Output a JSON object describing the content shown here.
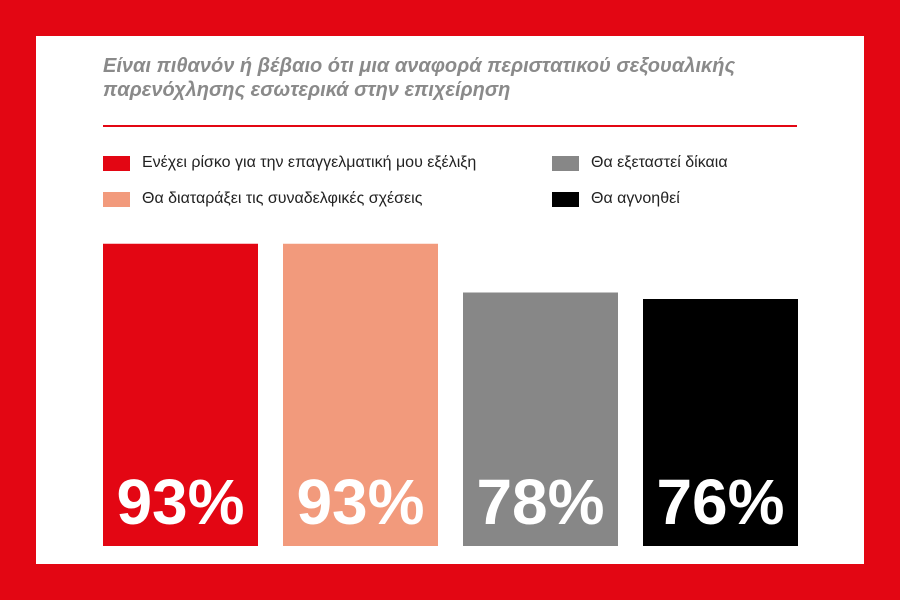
{
  "chart_data": {
    "type": "bar",
    "title": [
      "Είναι πιθανόν ή βέβαιο ότι μια αναφορά περιστατικού σεξουαλικής",
      "παρενόχλησης εσωτερικά στην επιχείρηση"
    ],
    "xlabel": "",
    "ylabel": "",
    "ylim": [
      0,
      100
    ],
    "grid": false,
    "legend_placement": "top",
    "categories": [
      "Ενέχει ρίσκο για την επαγγελματική μου εξέλιξη",
      "Θα διαταράξει τις συναδελφικές σχέσεις",
      "Θα εξεταστεί δίκαια",
      "Θα αγνοηθεί"
    ],
    "values": [
      93,
      93,
      78,
      76
    ],
    "data_labels": [
      "93%",
      "93%",
      "78%",
      "76%"
    ],
    "colors": [
      "#e30613",
      "#f29a7c",
      "#878787",
      "#000000"
    ]
  },
  "colors": {
    "frame": "#e30613",
    "title": "#8a8a8a",
    "rule": "#e30613"
  }
}
